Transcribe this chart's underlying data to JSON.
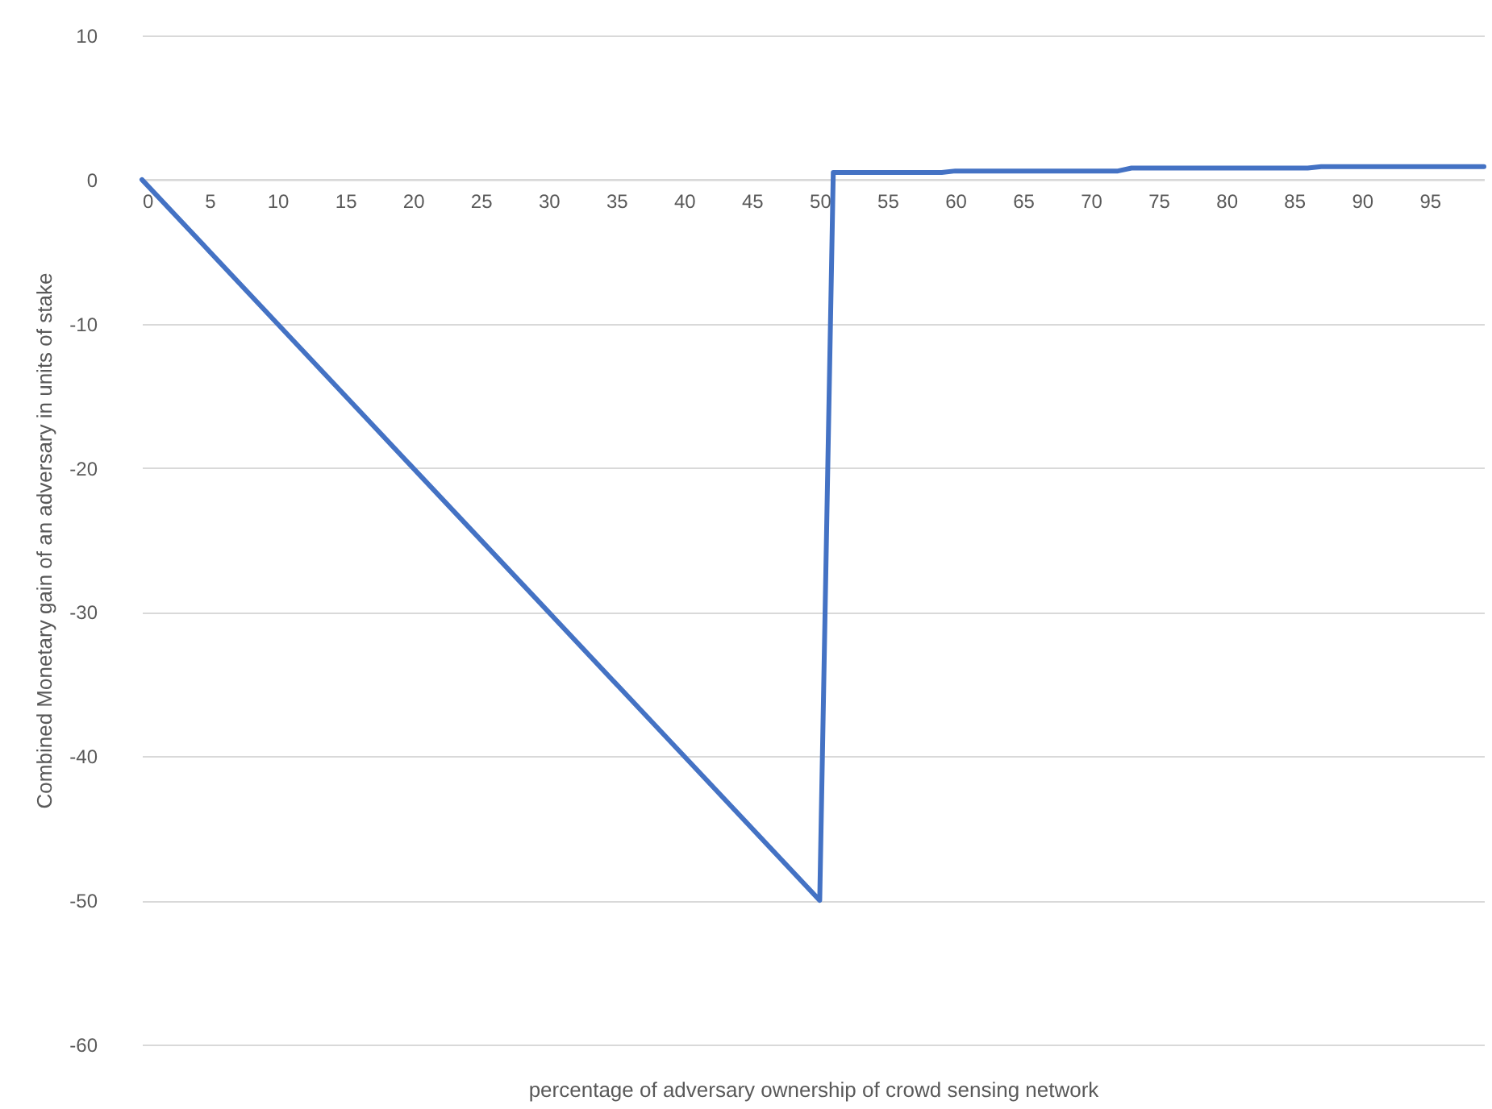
{
  "chart_data": {
    "type": "line",
    "xlabel": "percentage of adversary ownership of crowd sensing network",
    "ylabel": "Combined Monetary gain of an adversary in units of stake",
    "x": [
      0,
      10,
      20,
      30,
      40,
      50,
      51,
      59,
      60,
      72,
      73,
      86,
      87,
      99
    ],
    "series": [
      {
        "color": "#4472c4",
        "values": [
          0,
          -10,
          -20,
          -30,
          -40,
          -50,
          0.5,
          0.5,
          0.6,
          0.6,
          0.8,
          0.8,
          0.9,
          0.9
        ]
      }
    ],
    "xlim": [
      0,
      99
    ],
    "xticks": [
      0,
      5,
      10,
      15,
      20,
      25,
      30,
      35,
      40,
      45,
      50,
      55,
      60,
      65,
      70,
      75,
      80,
      85,
      90,
      95
    ],
    "ylim": [
      -60,
      10
    ],
    "yticks": [
      -60,
      -50,
      -40,
      -30,
      -20,
      -10,
      0,
      10
    ],
    "grid": "y",
    "marker": "none",
    "line_style": "solid"
  }
}
